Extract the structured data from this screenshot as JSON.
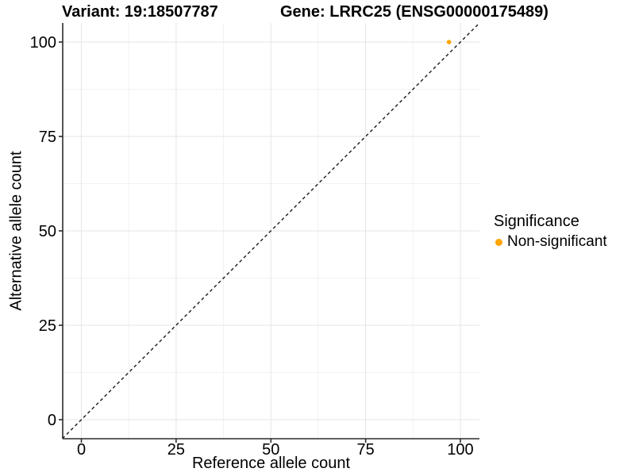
{
  "chart_data": {
    "type": "scatter",
    "title_left": "Variant: 19:18507787",
    "title_right": "Gene: LRRC25 (ENSG00000175489)",
    "xlabel": "Reference allele count",
    "ylabel": "Alternative allele count",
    "xlim": [
      -5,
      105
    ],
    "ylim": [
      -5,
      105
    ],
    "xticks": [
      0,
      25,
      50,
      75,
      100
    ],
    "yticks": [
      0,
      25,
      50,
      75,
      100
    ],
    "xticks_minor": [
      12.5,
      37.5,
      62.5,
      87.5
    ],
    "yticks_minor": [
      12.5,
      37.5,
      62.5,
      87.5
    ],
    "grid": "major+minor",
    "identity_line": {
      "slope": 1,
      "intercept": 0,
      "style": "dashed",
      "from": [
        -5,
        -5
      ],
      "to": [
        105,
        105
      ]
    },
    "points": [
      {
        "x": 97,
        "y": 100,
        "series": "Non-significant"
      }
    ],
    "legend": {
      "title": "Significance",
      "position": "right",
      "items": [
        {
          "label": "Non-significant",
          "color": "#FFA500"
        }
      ]
    }
  },
  "colors": {
    "point": "#FFA500",
    "grid_major": "#e5e5e5",
    "grid_minor": "#f2f2f2",
    "axis": "#2b2b2b",
    "identity_line": "#1a1a1a",
    "text": "#000000"
  }
}
